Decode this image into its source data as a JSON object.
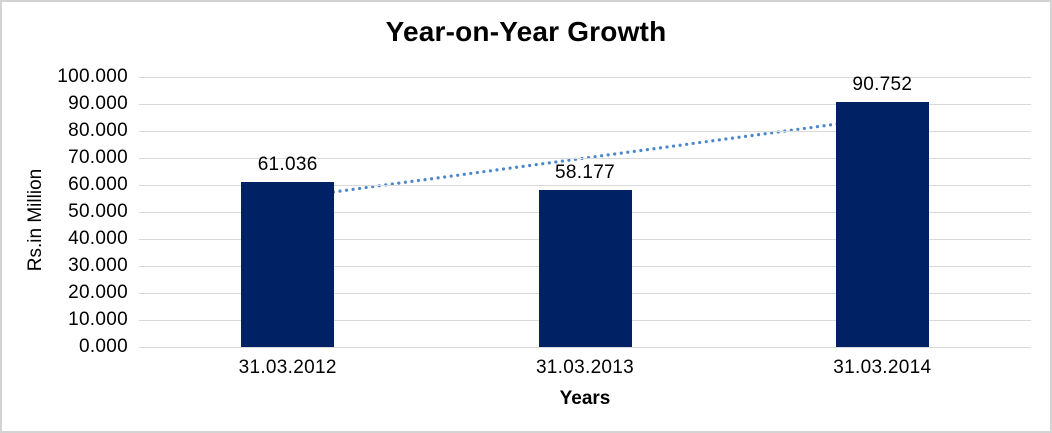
{
  "chart_title": "Year-on-Year Growth",
  "chart_data": {
    "type": "bar",
    "title": "Year-on-Year Growth",
    "xlabel": "Years",
    "ylabel": "Rs.in Million",
    "categories": [
      "31.03.2012",
      "31.03.2013",
      "31.03.2014"
    ],
    "values": [
      61.036,
      58.177,
      90.752
    ],
    "data_labels": [
      "61.036",
      "58.177",
      "90.752"
    ],
    "ylim": [
      0,
      100
    ],
    "ytick_step": 10,
    "ytick_labels": [
      "100.000",
      "90.000",
      "80.000",
      "70.000",
      "60.000",
      "50.000",
      "40.000",
      "30.000",
      "20.000",
      "10.000",
      "0.000"
    ],
    "grid": true,
    "legend": "none",
    "bar_color": "#002163",
    "gridline_color": "#d9d9d9",
    "trendline": {
      "style": "dotted",
      "color": "#4d87cb",
      "start_value": 55.13,
      "end_value": 84.85
    }
  }
}
